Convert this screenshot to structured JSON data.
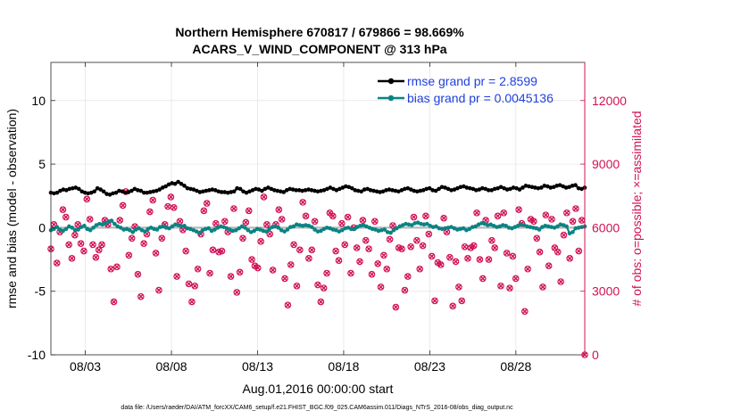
{
  "chart_data": {
    "type": "line",
    "title": "Northern Hemisphere 670817 / 679866 = 98.669%",
    "subtitle": "ACARS_V_WIND_COMPONENT @ 313 hPa",
    "ylabel_left": "rmse and bias (model - observation)",
    "ylabel_right": "# of obs: o=possible; ×=assimilated",
    "xlabel": "Aug.01,2016 00:00:00 start",
    "footnote": "data file: /Users/raeder/DAI/ATM_forcXX/CAM6_setup/f.e21.FHIST_BGC.f09_025.CAM6assim.011/Diags_NTrS_2016-08/obs_diag_output.nc",
    "x_ticks": [
      {
        "day": 3,
        "label": "08/03"
      },
      {
        "day": 8,
        "label": "08/08"
      },
      {
        "day": 13,
        "label": "08/13"
      },
      {
        "day": 18,
        "label": "08/18"
      },
      {
        "day": 23,
        "label": "08/23"
      },
      {
        "day": 28,
        "label": "08/28"
      }
    ],
    "xlim": [
      1,
      32
    ],
    "ylim_left": [
      -10,
      13
    ],
    "y_ticks_left": [
      "10",
      "5",
      "0",
      "-5",
      "-10"
    ],
    "ylim_right": [
      0,
      13800
    ],
    "y_ticks_right": [
      "12000",
      "9000",
      "6000",
      "3000",
      "0"
    ],
    "grid": true,
    "legend_position": "top-right",
    "colors": {
      "rmse": "#000000",
      "bias": "#0a8383",
      "obs": "#d11256",
      "zero_line": "#b8b8b8",
      "legend_text": "#1f3fe0"
    },
    "series": [
      {
        "name": "rmse grand pr = 2.8599",
        "axis": "left",
        "values": [
          2.75,
          2.7,
          2.75,
          2.9,
          3.0,
          2.95,
          3.05,
          3.1,
          3.15,
          3.05,
          2.85,
          2.75,
          2.7,
          2.75,
          2.85,
          3.1,
          3.0,
          2.85,
          2.65,
          2.6,
          2.7,
          2.75,
          2.9,
          2.85,
          2.75,
          2.8,
          2.9,
          3.05,
          2.95,
          2.9,
          2.75,
          2.75,
          2.8,
          2.85,
          2.9,
          3.0,
          3.15,
          3.25,
          3.4,
          3.5,
          3.45,
          3.6,
          3.45,
          3.3,
          3.1,
          3.05,
          3.0,
          2.9,
          2.8,
          2.85,
          2.9,
          2.95,
          3.0,
          2.95,
          2.85,
          2.8,
          2.8,
          2.75,
          2.8,
          2.85,
          3.1,
          3.05,
          2.85,
          2.75,
          2.85,
          2.95,
          3.05,
          3.0,
          2.9,
          3.05,
          3.15,
          3.05,
          2.95,
          2.9,
          2.85,
          2.8,
          2.95,
          3.05,
          3.0,
          2.95,
          2.95,
          2.9,
          2.95,
          3.0,
          2.95,
          2.9,
          2.85,
          2.9,
          2.95,
          3.05,
          3.15,
          3.05,
          2.95,
          3.05,
          3.15,
          3.25,
          3.2,
          3.1,
          2.95,
          2.9,
          2.85,
          3.0,
          3.05,
          2.95,
          2.9,
          2.85,
          2.8,
          2.85,
          2.95,
          3.0,
          2.95,
          2.9,
          2.85,
          2.95,
          3.05,
          3.1,
          3.0,
          2.9,
          2.85,
          2.9,
          2.95,
          3.05,
          3.1,
          2.95,
          2.9,
          3.05,
          3.2,
          3.15,
          3.05,
          2.95,
          3.0,
          3.1,
          3.2,
          3.25,
          3.15,
          3.1,
          3.05,
          2.95,
          3.0,
          3.1,
          3.05,
          2.95,
          2.95,
          3.05,
          3.1,
          3.2,
          3.1,
          3.0,
          3.05,
          3.15,
          3.1,
          3.0,
          3.15,
          3.3,
          3.25,
          3.2,
          3.15,
          3.1,
          3.15,
          3.3,
          3.25,
          3.15,
          3.2,
          3.3,
          3.35,
          3.25,
          3.15,
          3.2,
          3.3,
          3.35,
          3.1,
          3.05,
          3.15
        ]
      },
      {
        "name": "bias grand pr = 0.0045136",
        "axis": "left",
        "values": [
          -0.2,
          -0.1,
          0.05,
          -0.15,
          -0.25,
          -0.1,
          0.1,
          0.0,
          -0.2,
          -0.15,
          0.05,
          0.15,
          -0.1,
          -0.2,
          0.0,
          0.2,
          0.3,
          0.25,
          0.35,
          0.5,
          0.55,
          0.3,
          0.1,
          0.0,
          -0.15,
          -0.1,
          -0.2,
          -0.35,
          -0.15,
          -0.05,
          -0.2,
          -0.3,
          -0.1,
          0.0,
          -0.1,
          -0.15,
          0.05,
          0.1,
          0.0,
          -0.05,
          0.1,
          0.25,
          0.2,
          0.1,
          0.15,
          -0.05,
          -0.1,
          -0.2,
          -0.3,
          -0.4,
          -0.2,
          -0.1,
          -0.05,
          -0.25,
          -0.15,
          0.0,
          0.1,
          0.05,
          -0.05,
          -0.15,
          -0.25,
          -0.2,
          -0.05,
          0.1,
          0.0,
          -0.2,
          -0.35,
          -0.25,
          -0.1,
          -0.15,
          -0.25,
          -0.3,
          -0.1,
          0.05,
          0.1,
          0.0,
          -0.2,
          -0.3,
          -0.15,
          0.05,
          0.1,
          0.25,
          0.2,
          0.15,
          0.2,
          0.15,
          0.05,
          -0.15,
          -0.3,
          -0.25,
          -0.1,
          0.0,
          -0.05,
          -0.15,
          -0.2,
          -0.3,
          -0.2,
          -0.05,
          0.0,
          -0.1,
          -0.1,
          0.05,
          0.15,
          0.2,
          0.1,
          0.0,
          -0.1,
          -0.15,
          -0.25,
          -0.2,
          -0.15,
          -0.35,
          -0.4,
          -0.2,
          -0.05,
          0.1,
          0.2,
          0.3,
          0.25,
          0.2,
          0.35,
          0.4,
          0.3,
          0.25,
          0.3,
          0.15,
          0.05,
          0.1,
          -0.05,
          -0.1,
          -0.05,
          0.0,
          0.05,
          -0.05,
          -0.15,
          -0.1,
          -0.05,
          -0.2,
          -0.1,
          0.05,
          0.1,
          0.25,
          0.35,
          0.3,
          0.2,
          0.25,
          0.15,
          0.05,
          0.1,
          0.2,
          0.15,
          0.0,
          -0.05,
          0.05,
          0.15,
          0.25,
          0.2,
          0.1,
          0.05,
          0.0,
          -0.05,
          -0.15,
          0.05,
          0.15,
          0.1,
          0.05,
          0.0,
          0.1,
          0.25,
          0.2,
          0.1,
          -0.45,
          -0.35,
          -0.05,
          0.0,
          0.05,
          0.1
        ]
      },
      {
        "name": "obs possible",
        "axis": "right",
        "marker": "circle",
        "values": [
          5000,
          6150,
          4330,
          5800,
          6850,
          6500,
          5200,
          4550,
          5650,
          6150,
          5250,
          4900,
          7350,
          6400,
          5200,
          4600,
          4950,
          5200,
          6350,
          6150,
          4050,
          2500,
          4150,
          6350,
          7050,
          7700,
          4700,
          5500,
          6050,
          3800,
          2750,
          5250,
          5700,
          6750,
          7300,
          4800,
          3050,
          5500,
          6150,
          7000,
          7450,
          6950,
          3700,
          6300,
          5900,
          4900,
          3350,
          2500,
          3250,
          4050,
          5700,
          6800,
          7150,
          3850,
          4950,
          6200,
          4850,
          4900,
          6300,
          5800,
          3700,
          6900,
          2950,
          3900,
          5500,
          6250,
          6800,
          4500,
          4200,
          4100,
          5350,
          7450,
          6150,
          5700,
          4000,
          6150,
          6850,
          6400,
          3600,
          2350,
          4250,
          5200,
          3250,
          4950,
          7200,
          6550,
          4550,
          4950,
          6300,
          3300,
          2500,
          3150,
          3850,
          6700,
          6550,
          4900,
          4450,
          6200,
          5200,
          6500,
          3850,
          6000,
          5050,
          4400,
          6350,
          5400,
          5000,
          3800,
          6300,
          4300,
          3200,
          4700,
          4050,
          5450,
          6100,
          2250,
          5050,
          5000,
          3050,
          3700,
          5100,
          6500,
          5400,
          4050,
          5150,
          6550,
          5700,
          4650,
          2550,
          4350,
          4250,
          6450,
          5800,
          4600,
          2300,
          4400,
          3200,
          2550,
          5100,
          4550,
          5050,
          5150,
          6700,
          4500,
          3600,
          6350,
          4500,
          5400,
          5050,
          6550,
          3250,
          6700,
          4800,
          3150,
          4650,
          3600,
          6850,
          6200,
          2050,
          4050,
          6400,
          6300,
          5500,
          4850,
          3200,
          6600,
          4200,
          6400,
          5050,
          4850,
          3450,
          5650,
          6700,
          4550,
          6300,
          6900,
          4900,
          6350,
          0
        ]
      },
      {
        "name": "obs assimilated",
        "axis": "right",
        "marker": "x",
        "values": [
          5000,
          6150,
          4330,
          5800,
          6850,
          6500,
          5200,
          4550,
          5650,
          6150,
          5250,
          4900,
          7350,
          6400,
          5200,
          4600,
          4950,
          5200,
          6350,
          6150,
          4050,
          2500,
          4150,
          6350,
          7050,
          7700,
          4700,
          5500,
          6050,
          3800,
          2750,
          5250,
          5700,
          6750,
          7300,
          4800,
          3050,
          5500,
          6150,
          7000,
          7450,
          6950,
          3700,
          6300,
          5900,
          4900,
          3350,
          2500,
          3250,
          4050,
          5700,
          6800,
          7150,
          3850,
          4950,
          6200,
          4850,
          4900,
          6300,
          5800,
          3700,
          6900,
          2950,
          3900,
          5500,
          6250,
          6800,
          4500,
          4200,
          4100,
          5350,
          7450,
          6150,
          5700,
          4000,
          6150,
          6850,
          6400,
          3600,
          2350,
          4250,
          5200,
          3250,
          4950,
          7200,
          6550,
          4550,
          4950,
          6300,
          3300,
          2500,
          3150,
          3850,
          6700,
          6550,
          4900,
          4450,
          6200,
          5200,
          6500,
          3850,
          6000,
          5050,
          4400,
          6350,
          5400,
          5000,
          3800,
          6300,
          4300,
          3200,
          4700,
          4050,
          5450,
          6100,
          2250,
          5050,
          5000,
          3050,
          3700,
          5100,
          6500,
          5400,
          4050,
          5150,
          6550,
          5700,
          4650,
          2550,
          4350,
          4250,
          6450,
          5800,
          4600,
          2300,
          4400,
          3200,
          2550,
          5100,
          4550,
          5050,
          5150,
          6700,
          4500,
          3600,
          6350,
          4500,
          5400,
          5050,
          6550,
          3250,
          6700,
          4800,
          3150,
          4650,
          3600,
          6850,
          6200,
          2050,
          4050,
          6400,
          6300,
          5500,
          4850,
          3200,
          6600,
          4200,
          6400,
          5050,
          4850,
          3450,
          5650,
          6700,
          4550,
          6300,
          6900,
          4900,
          6350,
          0
        ]
      }
    ]
  }
}
